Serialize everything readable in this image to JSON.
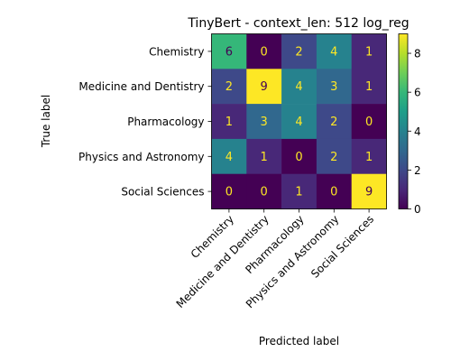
{
  "chart_data": {
    "type": "heatmap",
    "title": "TinyBert - context_len: 512 log_reg",
    "xlabel": "Predicted label",
    "ylabel": "True label",
    "x_categories": [
      "Chemistry",
      "Medicine and Dentistry",
      "Pharmacology",
      "Physics and Astronomy",
      "Social Sciences"
    ],
    "y_categories": [
      "Chemistry",
      "Medicine and Dentistry",
      "Pharmacology",
      "Physics and Astronomy",
      "Social Sciences"
    ],
    "values": [
      [
        6,
        0,
        2,
        4,
        1
      ],
      [
        2,
        9,
        4,
        3,
        1
      ],
      [
        1,
        3,
        4,
        2,
        0
      ],
      [
        4,
        1,
        0,
        2,
        1
      ],
      [
        0,
        0,
        1,
        0,
        9
      ]
    ],
    "colormap": "viridis",
    "colorbar": {
      "min": 0,
      "max": 9,
      "ticks": [
        0,
        2,
        4,
        6,
        8
      ]
    },
    "grid": false
  }
}
